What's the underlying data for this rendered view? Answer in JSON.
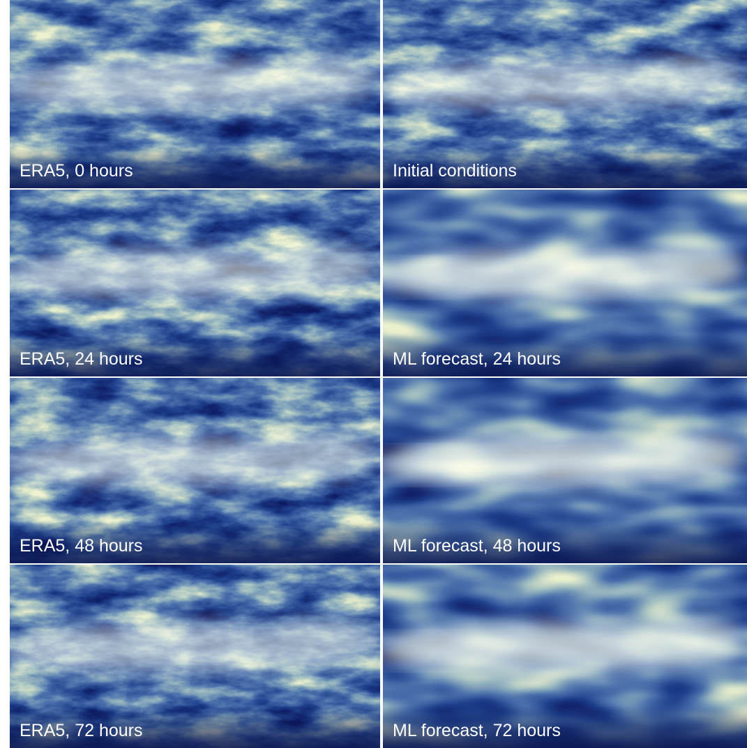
{
  "panels": [
    {
      "label": "ERA5, 0 hours"
    },
    {
      "label": "Initial conditions"
    },
    {
      "label": "ERA5, 24 hours"
    },
    {
      "label": "ML forecast, 24 hours"
    },
    {
      "label": "ERA5, 48 hours"
    },
    {
      "label": "ML forecast, 48 hours"
    },
    {
      "label": "ERA5, 72 hours"
    },
    {
      "label": "ML forecast, 72 hours"
    }
  ]
}
